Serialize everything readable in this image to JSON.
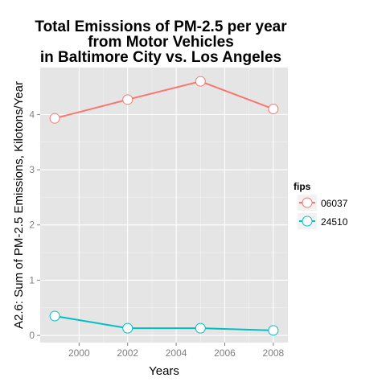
{
  "chart_data": {
    "type": "line",
    "title_lines": [
      "Total Emissions of PM-2.5 per year",
      "from Motor Vehicles",
      "in Baltimore City vs. Los Angeles"
    ],
    "xlabel": "Years",
    "ylabel": "A2.6: Sum of PM-2.5 Emissions, Kilotons/Year",
    "x": [
      1999,
      2002,
      2005,
      2008
    ],
    "xticks": [
      "2000",
      "2002",
      "2004",
      "2006",
      "2008"
    ],
    "yticks": [
      "0",
      "1",
      "2",
      "3",
      "4"
    ],
    "xlim": [
      1998.4,
      2008.6
    ],
    "ylim": [
      -0.13,
      4.85
    ],
    "grid": true,
    "legend_title": "fips",
    "legend_position": "right",
    "series": [
      {
        "name": "06037",
        "color": "#F8766D",
        "values": [
          3.93,
          4.27,
          4.6,
          4.1
        ]
      },
      {
        "name": "24510",
        "color": "#00BFC4",
        "values": [
          0.35,
          0.13,
          0.13,
          0.09
        ]
      }
    ]
  }
}
